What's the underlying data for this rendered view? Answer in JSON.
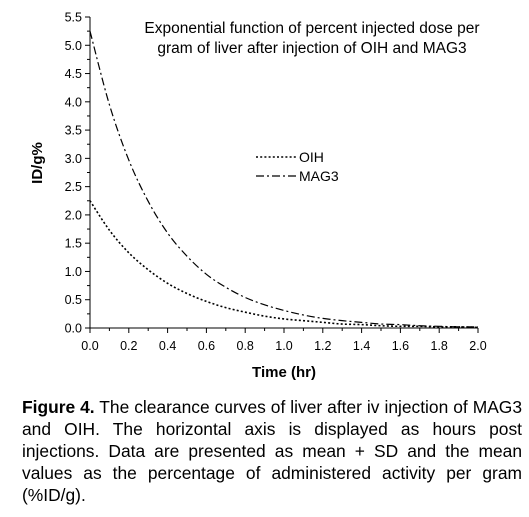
{
  "chart_data": {
    "type": "line",
    "title": "Exponential function of  percent injected dose per gram of liver after injection of OIH and MAG3",
    "title_lines": [
      "Exponential function of  percent injected dose per",
      "gram of liver after injection of OIH and MAG3"
    ],
    "xlabel": "Time (hr)",
    "ylabel": "ID/g%",
    "xlim": [
      0.0,
      2.0
    ],
    "ylim": [
      0.0,
      5.5
    ],
    "xticks": [
      0.0,
      0.2,
      0.4,
      0.6,
      0.8,
      1.0,
      1.2,
      1.4,
      1.6,
      1.8,
      2.0
    ],
    "xtick_labels": [
      "0.0",
      "0.2",
      "0.4",
      "0.6",
      "0.8",
      "1.0",
      "1.2",
      "1.4",
      "1.6",
      "1.8",
      "2.0"
    ],
    "yticks": [
      0.0,
      0.5,
      1.0,
      1.5,
      2.0,
      2.5,
      3.0,
      3.5,
      4.0,
      4.5,
      5.0,
      5.5
    ],
    "ytick_labels": [
      "0.0",
      "0.5",
      "1.0",
      "1.5",
      "2.0",
      "2.5",
      "3.0",
      "3.5",
      "4.0",
      "4.5",
      "5.0",
      "5.5"
    ],
    "grid": false,
    "legend_placement": "center-right",
    "series": [
      {
        "name": "OIH",
        "style": "dotted",
        "color": "#000000",
        "x": [
          0.0,
          0.1,
          0.2,
          0.3,
          0.4,
          0.5,
          0.6,
          0.7,
          0.8,
          0.9,
          1.0,
          1.1,
          1.2,
          1.3,
          1.4,
          1.5,
          1.6,
          1.7,
          1.8,
          1.9,
          2.0
        ],
        "y": [
          2.25,
          1.73,
          1.33,
          1.03,
          0.79,
          0.61,
          0.47,
          0.36,
          0.28,
          0.21,
          0.16,
          0.13,
          0.1,
          0.07,
          0.06,
          0.04,
          0.03,
          0.03,
          0.02,
          0.02,
          0.01
        ]
      },
      {
        "name": "MAG3",
        "style": "dash-dot",
        "color": "#000000",
        "x": [
          0.0,
          0.1,
          0.2,
          0.3,
          0.4,
          0.5,
          0.6,
          0.7,
          0.8,
          0.9,
          1.0,
          1.1,
          1.2,
          1.3,
          1.4,
          1.5,
          1.6,
          1.7,
          1.8,
          1.9,
          2.0
        ],
        "y": [
          5.25,
          3.95,
          2.97,
          2.24,
          1.68,
          1.27,
          0.95,
          0.72,
          0.54,
          0.41,
          0.31,
          0.23,
          0.17,
          0.13,
          0.1,
          0.07,
          0.06,
          0.04,
          0.03,
          0.02,
          0.02
        ]
      }
    ]
  },
  "caption": {
    "label": "Figure 4.",
    "text": " The clearance curves of liver after iv injection of MAG3 and OIH. The horizontal axis is displayed as hours post injections. Data are presented as mean + SD and the mean values as the percentage of administered activity per gram (%ID/g)."
  }
}
